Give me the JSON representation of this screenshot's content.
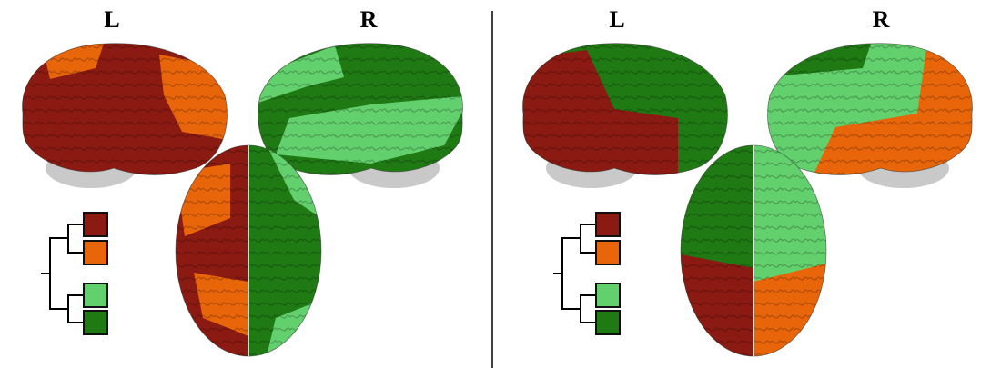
{
  "panels": [
    {
      "left_hemisphere_label": "L",
      "right_hemisphere_label": "R"
    },
    {
      "left_hemisphere_label": "L",
      "right_hemisphere_label": "R"
    }
  ]
}
